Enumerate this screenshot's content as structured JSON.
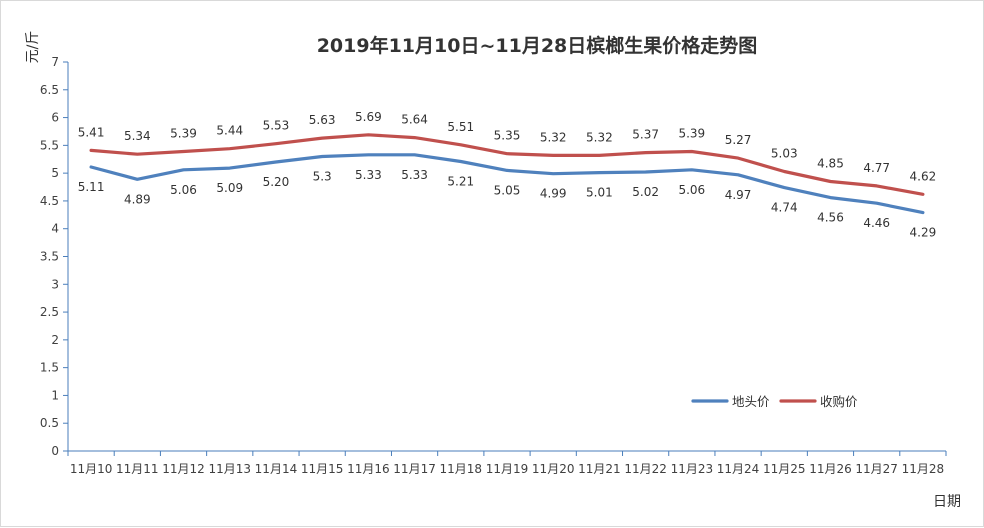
{
  "chart_data": {
    "type": "line",
    "title": "2019年11月10日~11月28日槟榔生果价格走势图",
    "xlabel": "日期",
    "ylabel": "元/斤",
    "categories": [
      "11月10",
      "11月11",
      "11月12",
      "11月13",
      "11月14",
      "11月15",
      "11月16",
      "11月17",
      "11月18",
      "11月19",
      "11月20",
      "11月21",
      "11月22",
      "11月23",
      "11月24",
      "11月25",
      "11月26",
      "11月27",
      "11月28"
    ],
    "x_tick_labels": [
      "11月10",
      "11月11",
      "11月12",
      "11月13",
      "11月14",
      "11月15",
      "11月16",
      "11月17",
      "11月18",
      "11月19",
      "11月20",
      "11月21",
      "11月22",
      "11月23",
      "11月24",
      "11月25",
      "11月26",
      "11月27",
      "11月28"
    ],
    "ylim": [
      0,
      7
    ],
    "y_ticks": [
      "0",
      "0.5",
      "1",
      "1.5",
      "2",
      "2.5",
      "3",
      "3.5",
      "4",
      "4.5",
      "5",
      "5.5",
      "6",
      "6.5",
      "7"
    ],
    "grid": false,
    "legend_position": "bottom-right",
    "series": [
      {
        "name": "地头价",
        "color": "#4f81bd",
        "values": [
          5.11,
          4.89,
          5.06,
          5.09,
          5.2,
          5.3,
          5.33,
          5.33,
          5.21,
          5.05,
          4.99,
          5.01,
          5.02,
          5.06,
          4.97,
          4.74,
          4.56,
          4.46,
          4.29
        ],
        "labels": [
          "5.11",
          "4.89",
          "5.06",
          "5.09",
          "5.20",
          "5.3",
          "5.33",
          "5.33",
          "5.21",
          "5.05",
          "4.99",
          "5.01",
          "5.02",
          "5.06",
          "4.97",
          "4.74",
          "4.56",
          "4.46",
          "4.29"
        ]
      },
      {
        "name": "收购价",
        "color": "#c0504d",
        "values": [
          5.41,
          5.34,
          5.39,
          5.44,
          5.53,
          5.63,
          5.69,
          5.64,
          5.51,
          5.35,
          5.32,
          5.32,
          5.37,
          5.39,
          5.27,
          5.03,
          4.85,
          4.77,
          4.62
        ],
        "labels": [
          "5.41",
          "5.34",
          "5.39",
          "5.44",
          "5.53",
          "5.63",
          "5.69",
          "5.64",
          "5.51",
          "5.35",
          "5.32",
          "5.32",
          "5.37",
          "5.39",
          "5.27",
          "5.03",
          "4.85",
          "4.77",
          "4.62"
        ]
      }
    ]
  }
}
